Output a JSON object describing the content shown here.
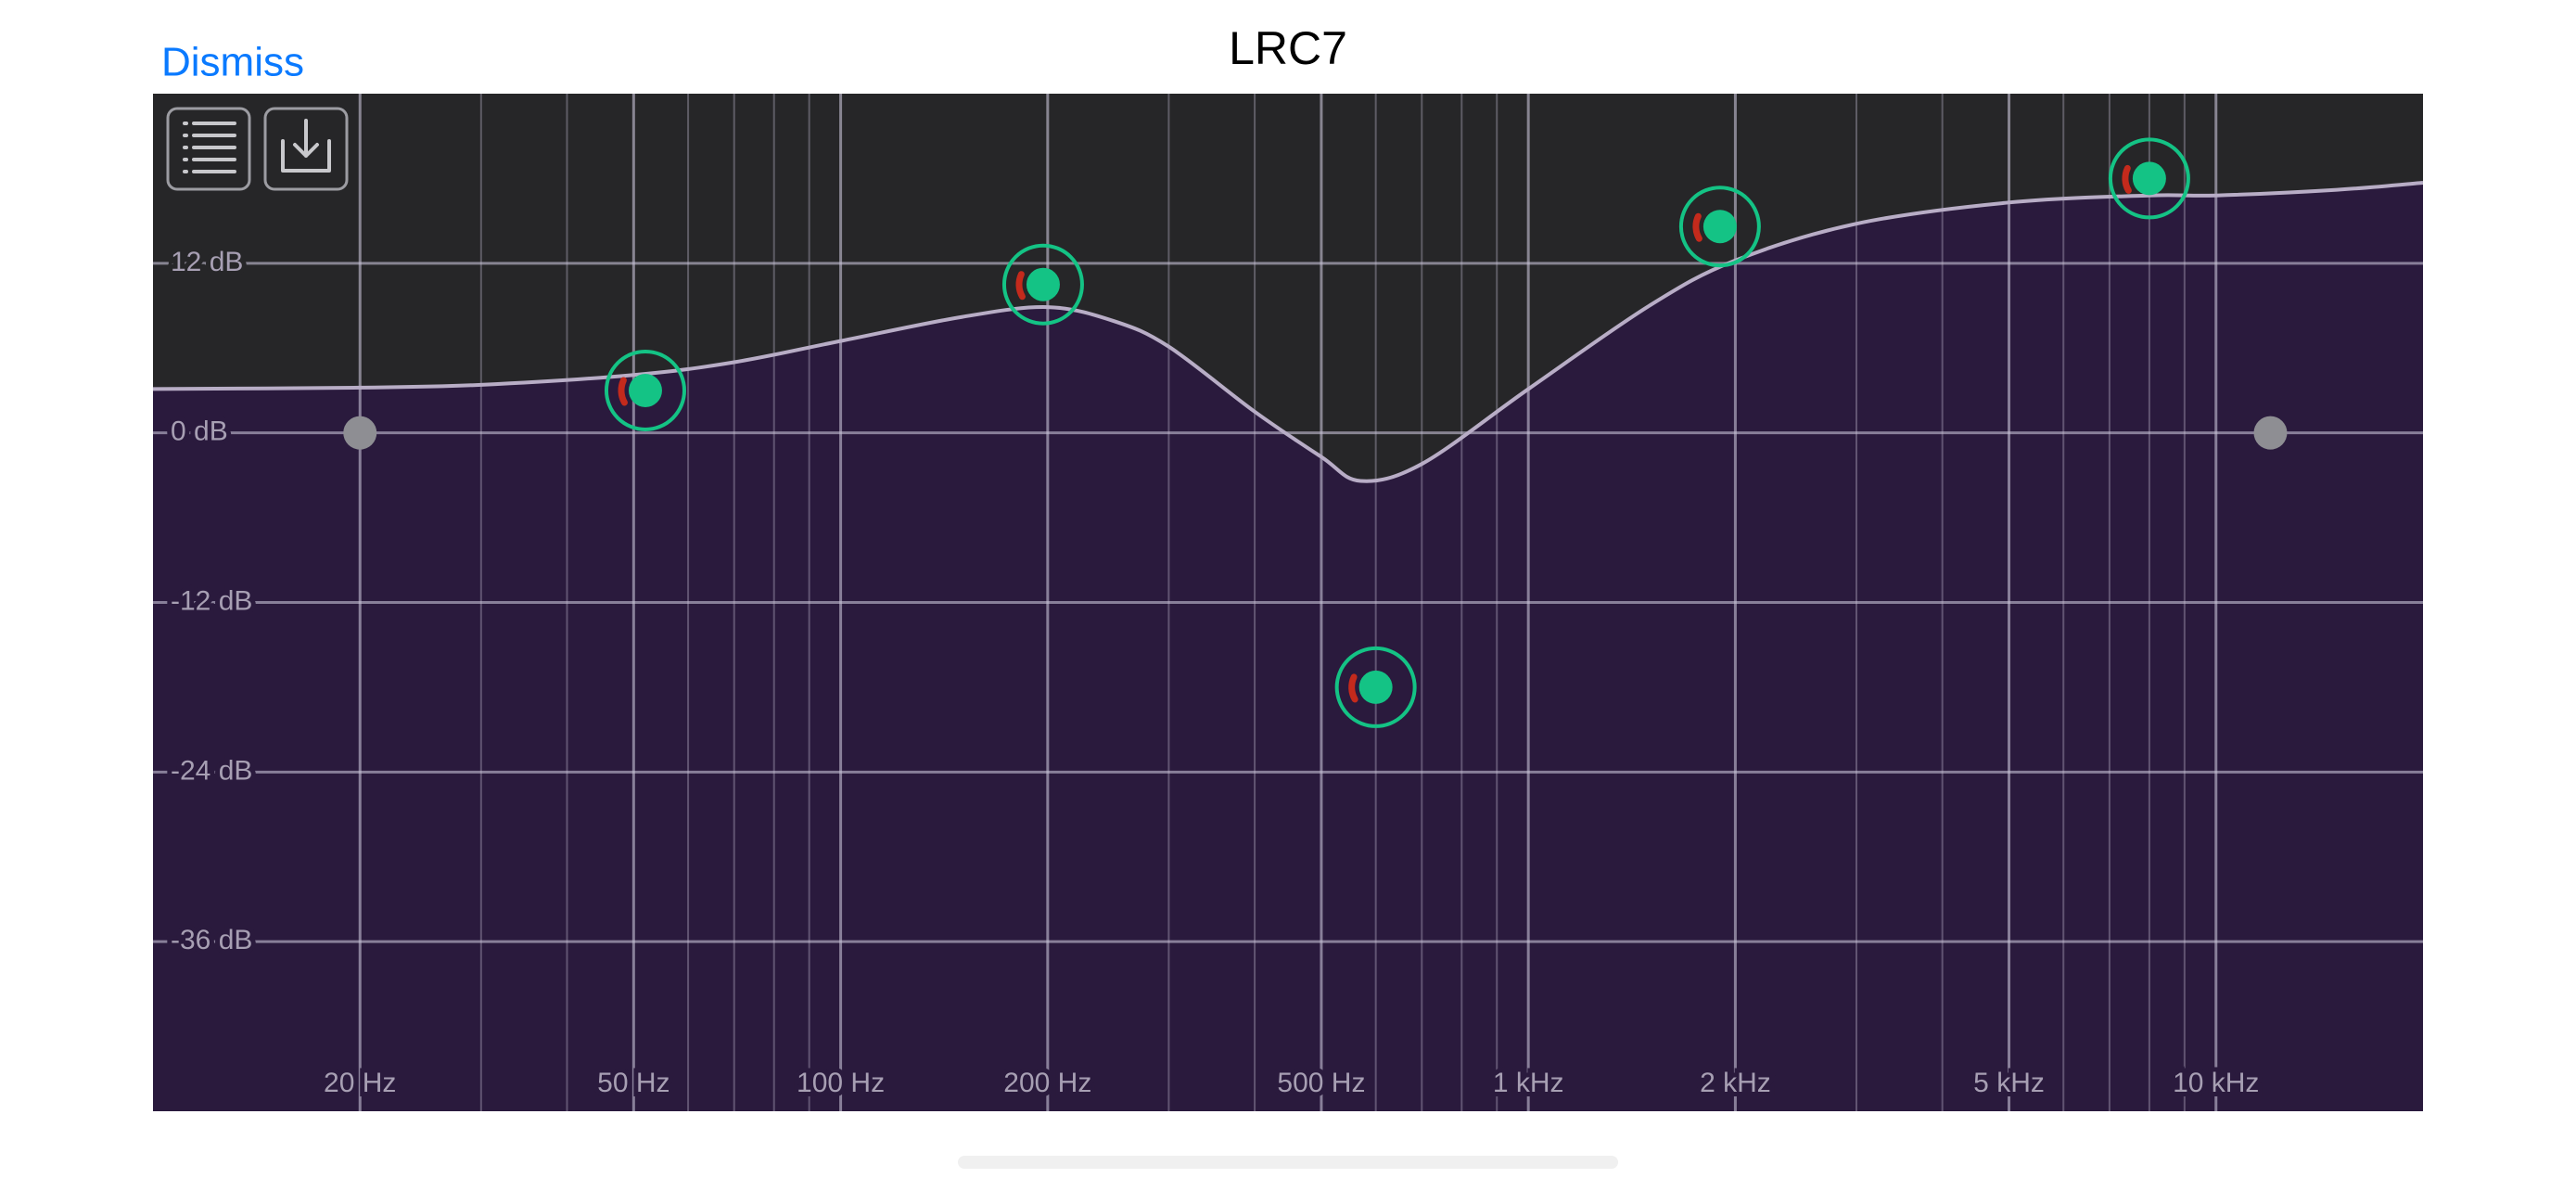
{
  "header": {
    "dismiss": "Dismiss",
    "title": "LRC7"
  },
  "chart_data": {
    "type": "line",
    "x": [
      10,
      20,
      30,
      50,
      70,
      100,
      150,
      200,
      250,
      300,
      400,
      500,
      570,
      700,
      1000,
      1500,
      2000,
      3000,
      5000,
      8000,
      10000,
      15000,
      20000
    ],
    "values": [
      3.1,
      3.2,
      3.4,
      4.1,
      5.0,
      6.5,
      8.2,
      8.9,
      7.9,
      6.1,
      1.5,
      -1.7,
      -3.4,
      -2.2,
      3.1,
      9.0,
      12.2,
      14.8,
      16.3,
      16.8,
      16.8,
      17.2,
      17.7
    ],
    "color": "#b8adc6",
    "fill_color": "#2a1a3d",
    "background": "#262628",
    "xscale": "log",
    "xlim": [
      10,
      20000
    ],
    "ylim": [
      -48,
      24
    ],
    "xticks": [
      {
        "value": 20,
        "label": "20 Hz"
      },
      {
        "value": 50,
        "label": "50 Hz"
      },
      {
        "value": 100,
        "label": "100 Hz"
      },
      {
        "value": 200,
        "label": "200 Hz"
      },
      {
        "value": 500,
        "label": "500 Hz"
      },
      {
        "value": 1000,
        "label": "1 kHz"
      },
      {
        "value": 2000,
        "label": "2 kHz"
      },
      {
        "value": 5000,
        "label": "5 kHz"
      },
      {
        "value": 10000,
        "label": "10 kHz"
      }
    ],
    "x_minor_grid": [
      30,
      40,
      60,
      70,
      80,
      90,
      300,
      400,
      600,
      700,
      800,
      900,
      3000,
      4000,
      6000,
      7000,
      8000,
      9000
    ],
    "yticks": [
      {
        "value": 12,
        "label": "12 dB"
      },
      {
        "value": 0,
        "label": "0 dB"
      },
      {
        "value": -12,
        "label": "-12 dB"
      },
      {
        "value": -24,
        "label": "-24 dB"
      },
      {
        "value": -36,
        "label": "-36 dB"
      }
    ],
    "grid": true,
    "bands": [
      {
        "freq": 52,
        "gain": 3
      },
      {
        "freq": 197,
        "gain": 10.5
      },
      {
        "freq": 600,
        "gain": -18
      },
      {
        "freq": 1900,
        "gain": 14.6
      },
      {
        "freq": 8000,
        "gain": 18
      }
    ],
    "band_color": "#14c385",
    "filters": [
      {
        "freq": 20,
        "gain": 0
      },
      {
        "freq": 12000,
        "gain": 0
      }
    ],
    "filter_color": "#8e8e93"
  }
}
